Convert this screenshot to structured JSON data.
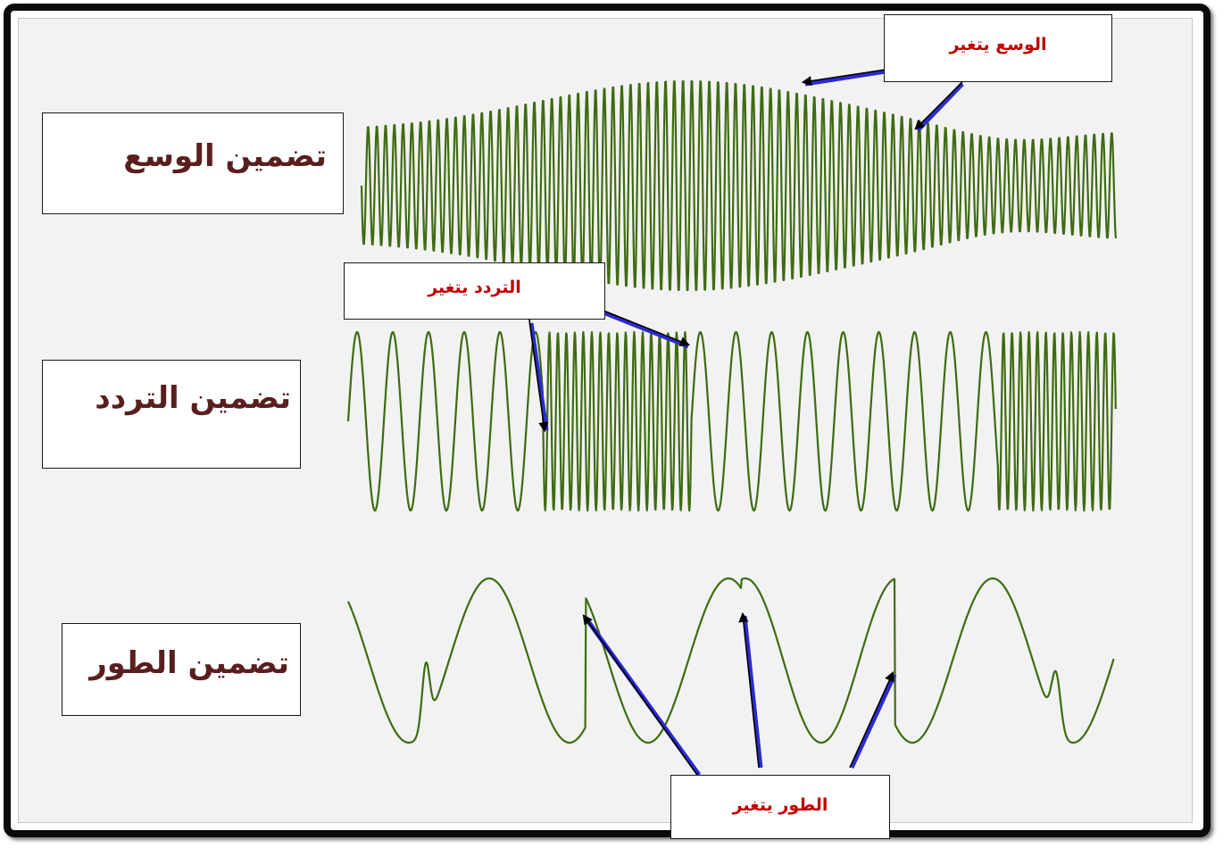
{
  "labels": {
    "am": "تضمين الوسع",
    "fm": "تضمين التردد",
    "pm": "تضمين الطور"
  },
  "callouts": {
    "amplitude_changes": "الوسع يتغير",
    "frequency_changes": "التردد يتغير",
    "phase_changes": "الطور يتغير"
  },
  "colors": {
    "wave": "#3f6b12",
    "label_text": "#5a1e1e",
    "callout_text": "#c00000",
    "arrow": "#000000",
    "arrow_shadow": "#2b2bd0"
  }
}
